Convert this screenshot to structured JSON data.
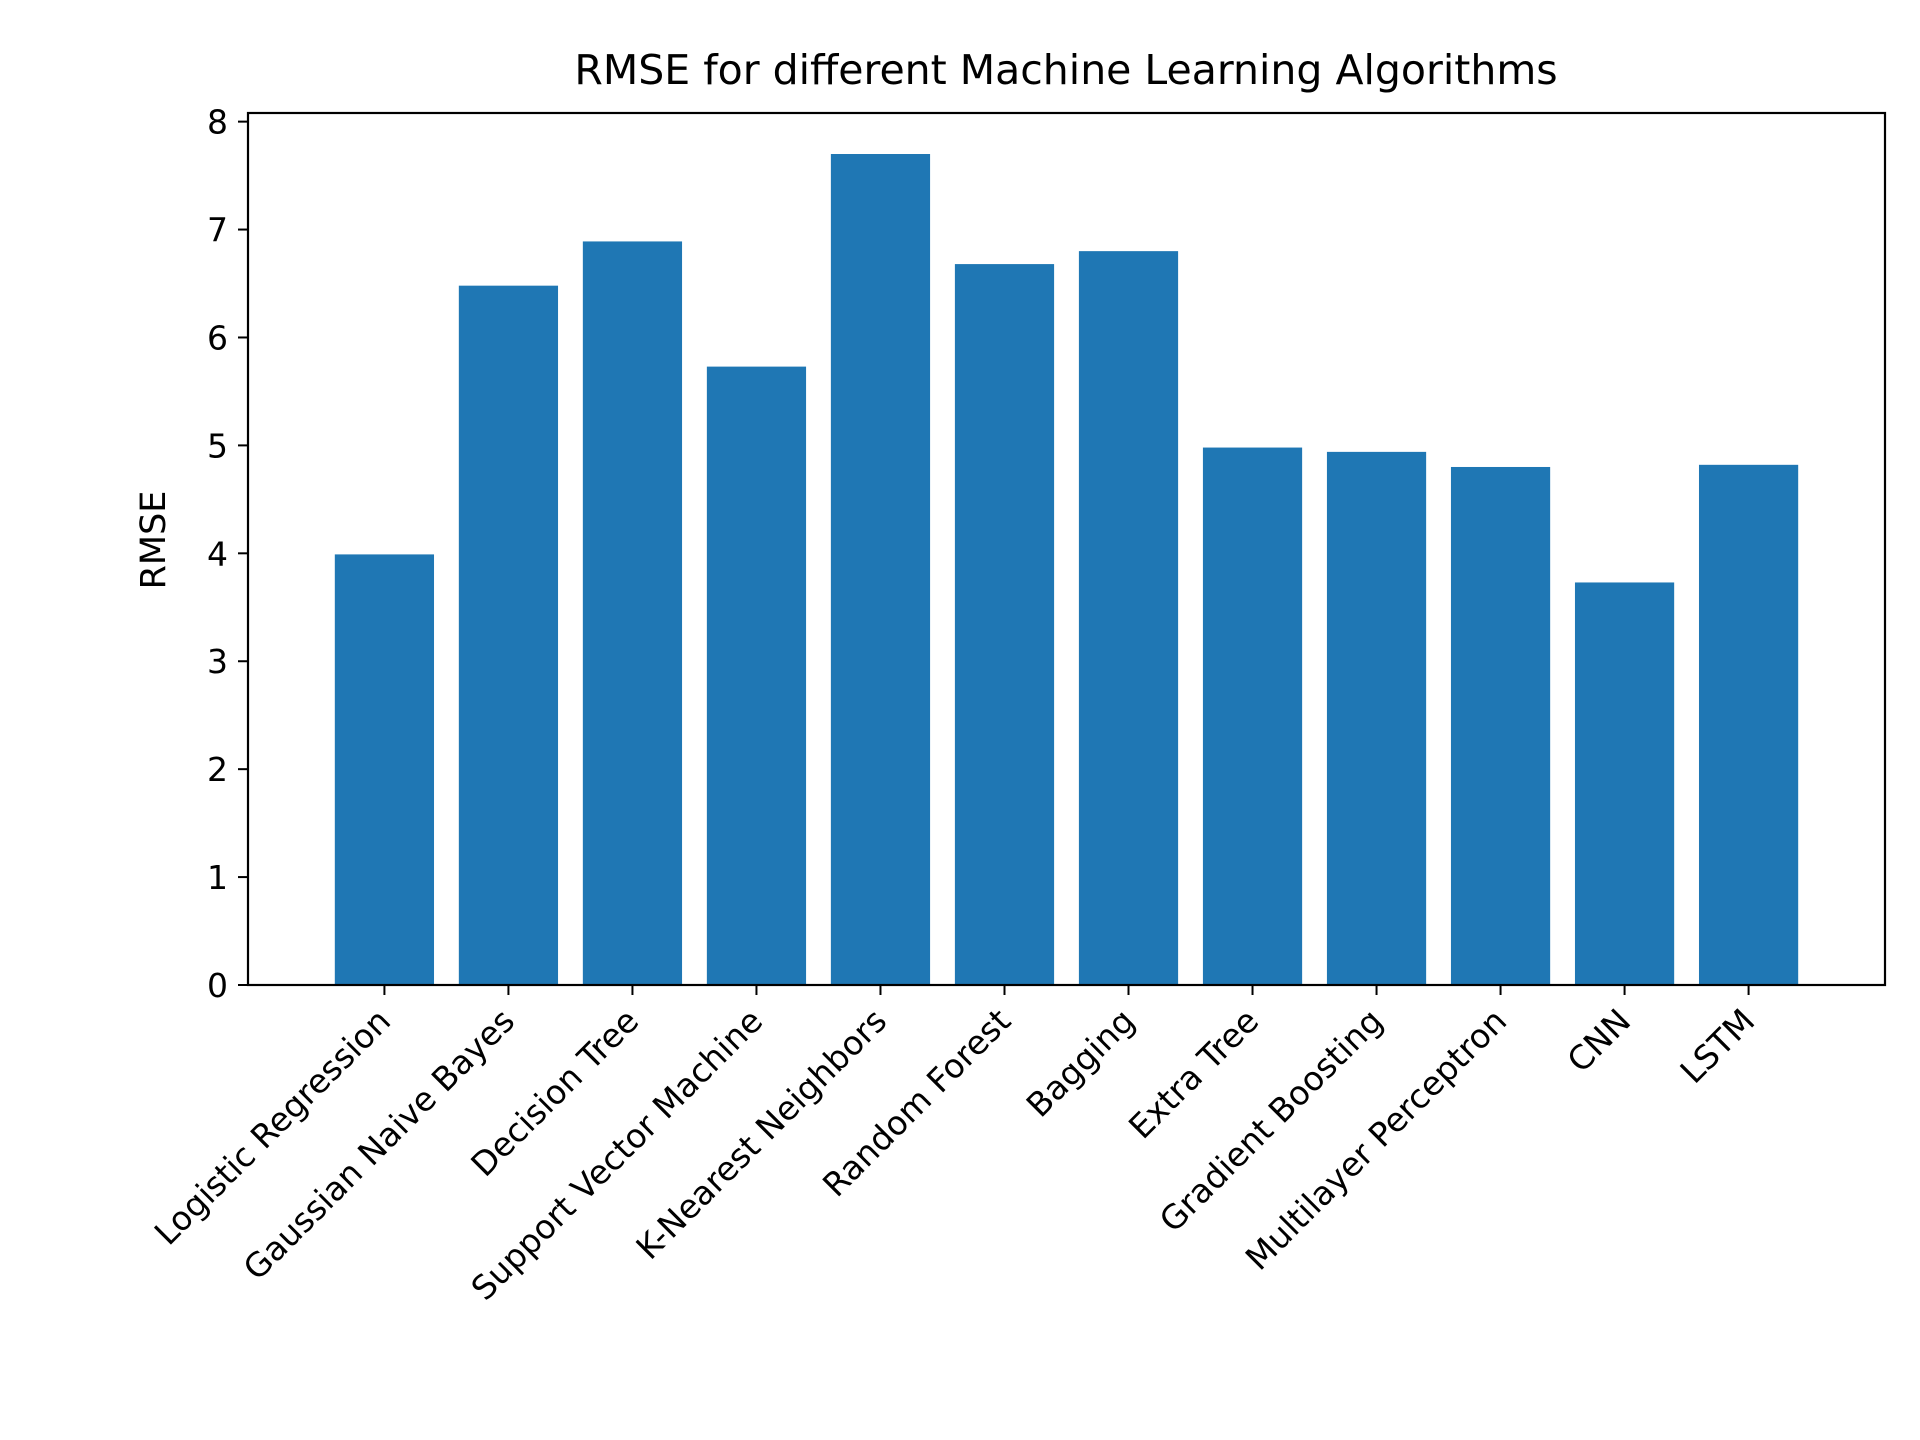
{
  "chart_data": {
    "type": "bar",
    "title": "RMSE for different Machine Learning Algorithms",
    "xlabel": "",
    "ylabel": "RMSE",
    "ylim": [
      0,
      8.08
    ],
    "yticks": [
      0,
      1,
      2,
      3,
      4,
      5,
      6,
      7,
      8
    ],
    "grid": false,
    "legend": "none",
    "bar_color": "#1f77b4",
    "categories": [
      "Logistic Regression",
      "Gaussian Naive Bayes",
      "Decision Tree",
      "Support Vector Machine",
      "K-Nearest Neighbors",
      "Random Forest",
      "Bagging",
      "Extra Tree",
      "Gradient Boosting",
      "Multilayer Perceptron",
      "CNN",
      "LSTM"
    ],
    "values": [
      3.99,
      6.48,
      6.89,
      5.73,
      7.7,
      6.68,
      6.8,
      4.98,
      4.94,
      4.8,
      3.73,
      4.82
    ]
  }
}
